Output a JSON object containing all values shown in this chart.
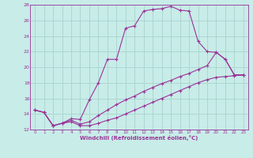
{
  "xlabel": "Windchill (Refroidissement éolien,°C)",
  "bg_color": "#c8ece8",
  "grid_color": "#a8d4ce",
  "line_color": "#993399",
  "xlim": [
    -0.5,
    23.5
  ],
  "ylim": [
    12,
    28
  ],
  "xticks": [
    0,
    1,
    2,
    3,
    4,
    5,
    6,
    7,
    8,
    9,
    10,
    11,
    12,
    13,
    14,
    15,
    16,
    17,
    18,
    19,
    20,
    21,
    22,
    23
  ],
  "yticks": [
    12,
    14,
    16,
    18,
    20,
    22,
    24,
    26,
    28
  ],
  "line1_x": [
    0,
    1,
    2,
    3,
    4,
    5,
    6,
    7,
    8,
    9,
    10,
    11,
    12,
    13,
    14,
    15,
    16,
    17,
    18,
    19,
    20,
    21,
    22,
    23
  ],
  "line1_y": [
    14.5,
    14.2,
    12.5,
    12.8,
    13.4,
    13.3,
    15.8,
    18.0,
    21.0,
    21.0,
    25.0,
    25.3,
    27.2,
    27.4,
    27.5,
    27.8,
    27.3,
    27.2,
    23.3,
    22.0,
    21.9,
    21.0,
    19.0,
    19.0
  ],
  "line2_x": [
    0,
    1,
    2,
    3,
    4,
    5,
    6,
    7,
    8,
    9,
    10,
    11,
    12,
    13,
    14,
    15,
    16,
    17,
    18,
    19,
    20,
    21,
    22,
    23
  ],
  "line2_y": [
    14.5,
    14.2,
    12.5,
    12.8,
    13.2,
    12.7,
    13.0,
    13.8,
    14.5,
    15.2,
    15.8,
    16.3,
    16.9,
    17.4,
    17.9,
    18.3,
    18.8,
    19.2,
    19.7,
    20.2,
    21.9,
    21.0,
    19.0,
    19.0
  ],
  "line3_x": [
    0,
    1,
    2,
    3,
    4,
    5,
    6,
    7,
    8,
    9,
    10,
    11,
    12,
    13,
    14,
    15,
    16,
    17,
    18,
    19,
    20,
    21,
    22,
    23
  ],
  "line3_y": [
    14.5,
    14.2,
    12.5,
    12.8,
    13.0,
    12.5,
    12.5,
    12.8,
    13.2,
    13.5,
    14.0,
    14.5,
    15.0,
    15.5,
    16.0,
    16.5,
    17.0,
    17.5,
    18.0,
    18.4,
    18.7,
    18.8,
    18.9,
    19.0
  ]
}
